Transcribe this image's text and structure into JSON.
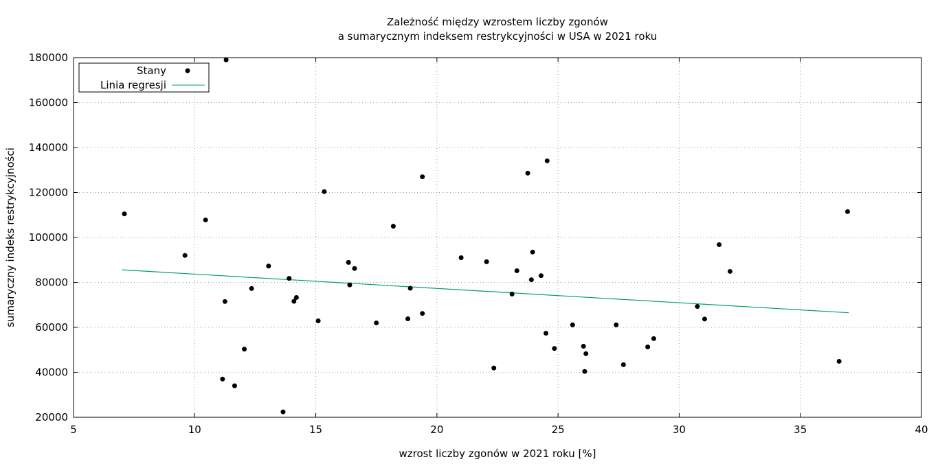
{
  "chart_data": {
    "type": "scatter",
    "title_line1": "Zależność między wzrostem liczby zgonów",
    "title_line2": "a sumarycznym indeksem restrykcyjności w USA w 2021 roku",
    "xlabel": "wzrost liczby zgonów w 2021 roku [%]",
    "ylabel": "sumaryczny indeks restrykcyjności",
    "xlim": [
      5,
      40
    ],
    "ylim": [
      20000,
      180000
    ],
    "xticks": [
      5,
      10,
      15,
      20,
      25,
      30,
      35,
      40
    ],
    "yticks": [
      20000,
      40000,
      60000,
      80000,
      100000,
      120000,
      140000,
      160000,
      180000
    ],
    "grid": true,
    "legend_position": "top-left",
    "colors": {
      "points": "#000000",
      "regression": "#009e73",
      "grid": "#a0a0a0"
    },
    "series": [
      {
        "name": "Stany",
        "kind": "points",
        "points": [
          [
            7.1,
            110500
          ],
          [
            9.6,
            92000
          ],
          [
            10.45,
            107800
          ],
          [
            11.15,
            37000
          ],
          [
            11.25,
            71500
          ],
          [
            11.3,
            179000
          ],
          [
            11.65,
            34000
          ],
          [
            12.05,
            50300
          ],
          [
            12.35,
            77300
          ],
          [
            13.05,
            87300
          ],
          [
            13.65,
            22400
          ],
          [
            13.9,
            81800
          ],
          [
            14.1,
            71600
          ],
          [
            14.2,
            73300
          ],
          [
            15.1,
            62900
          ],
          [
            15.35,
            120400
          ],
          [
            16.35,
            88900
          ],
          [
            16.4,
            78900
          ],
          [
            16.6,
            86200
          ],
          [
            17.5,
            62000
          ],
          [
            18.2,
            105000
          ],
          [
            18.8,
            63800
          ],
          [
            18.9,
            77400
          ],
          [
            19.4,
            127000
          ],
          [
            19.4,
            66200
          ],
          [
            21.0,
            91000
          ],
          [
            22.05,
            89200
          ],
          [
            22.35,
            41900
          ],
          [
            23.1,
            74800
          ],
          [
            23.3,
            85200
          ],
          [
            23.75,
            128600
          ],
          [
            23.9,
            81200
          ],
          [
            23.95,
            93500
          ],
          [
            24.3,
            83000
          ],
          [
            24.5,
            57400
          ],
          [
            24.55,
            134100
          ],
          [
            24.85,
            50600
          ],
          [
            25.6,
            61100
          ],
          [
            26.05,
            51600
          ],
          [
            26.1,
            40400
          ],
          [
            26.15,
            48300
          ],
          [
            27.4,
            61100
          ],
          [
            27.7,
            43400
          ],
          [
            28.7,
            51300
          ],
          [
            28.95,
            55000
          ],
          [
            30.75,
            69300
          ],
          [
            31.05,
            63700
          ],
          [
            31.65,
            96800
          ],
          [
            32.1,
            84900
          ],
          [
            36.6,
            44900
          ],
          [
            36.95,
            111500
          ]
        ]
      },
      {
        "name": "Linia regresji",
        "kind": "line",
        "x": [
          7.0,
          37.0
        ],
        "y": [
          85600,
          66500
        ]
      }
    ]
  }
}
